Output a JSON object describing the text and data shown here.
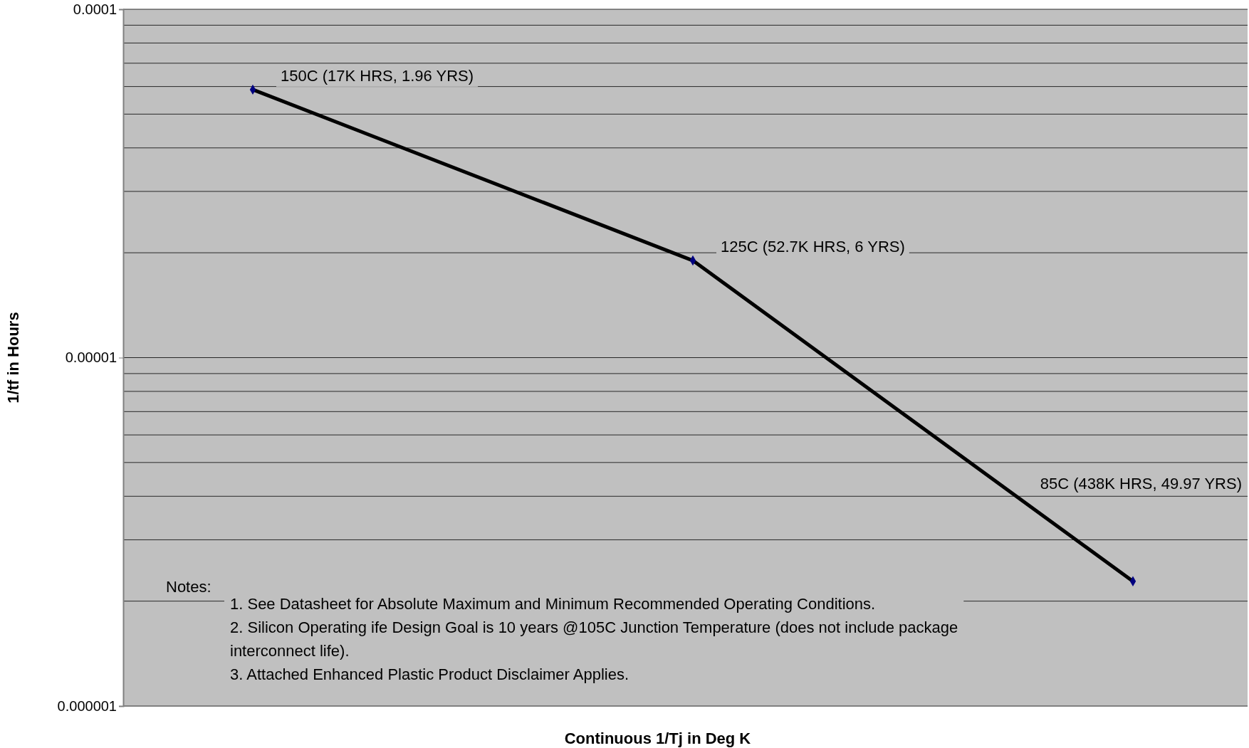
{
  "chart_data": {
    "type": "line",
    "xlabel": "Continuous 1/Tj in Deg K",
    "ylabel": "1/tf in Hours",
    "log": "y",
    "grid": "y",
    "tick_labels": "y",
    "marker": "diamond",
    "line_style": "solid",
    "categories": [
      null,
      null,
      null
    ],
    "ylim": [
      1e-06,
      0.0001
    ],
    "yticks": [
      {
        "value": 1e-06,
        "label": "0.000001"
      },
      {
        "value": 2e-06,
        "label": null
      },
      {
        "value": 3e-06,
        "label": null
      },
      {
        "value": 4e-06,
        "label": null
      },
      {
        "value": 5e-06,
        "label": null
      },
      {
        "value": 6e-06,
        "label": null
      },
      {
        "value": 7e-06,
        "label": null
      },
      {
        "value": 8e-06,
        "label": null
      },
      {
        "value": 9e-06,
        "label": null
      },
      {
        "value": 1e-05,
        "label": "0.00001"
      },
      {
        "value": 2e-05,
        "label": null
      },
      {
        "value": 3e-05,
        "label": null
      },
      {
        "value": 4e-05,
        "label": null
      },
      {
        "value": 5e-05,
        "label": null
      },
      {
        "value": 6e-05,
        "label": null
      },
      {
        "value": 7e-05,
        "label": null
      },
      {
        "value": 8e-05,
        "label": null
      },
      {
        "value": 9e-05,
        "label": null
      },
      {
        "value": 0.0001,
        "label": "0.0001"
      }
    ],
    "series": [
      {
        "color": "#000000",
        "values": [
          5.88e-05,
          1.9e-05,
          2.28e-06
        ]
      }
    ],
    "annotations": [
      "150C (17K HRS, 1.96 YRS)",
      "125C (52.7K HRS, 6 YRS)",
      "85C (438K HRS, 49.97 YRS)",
      "Notes:",
      "1. See Datasheet for Absolute Maximum and Minimum Recommended Operating Conditions.",
      "2. Silicon Operating ife Design Goal is 10 years @105C Junction Temperature (does not include package interconnect life).",
      "3. Attached Enhanced Plastic Product Disclaimer Applies."
    ]
  }
}
